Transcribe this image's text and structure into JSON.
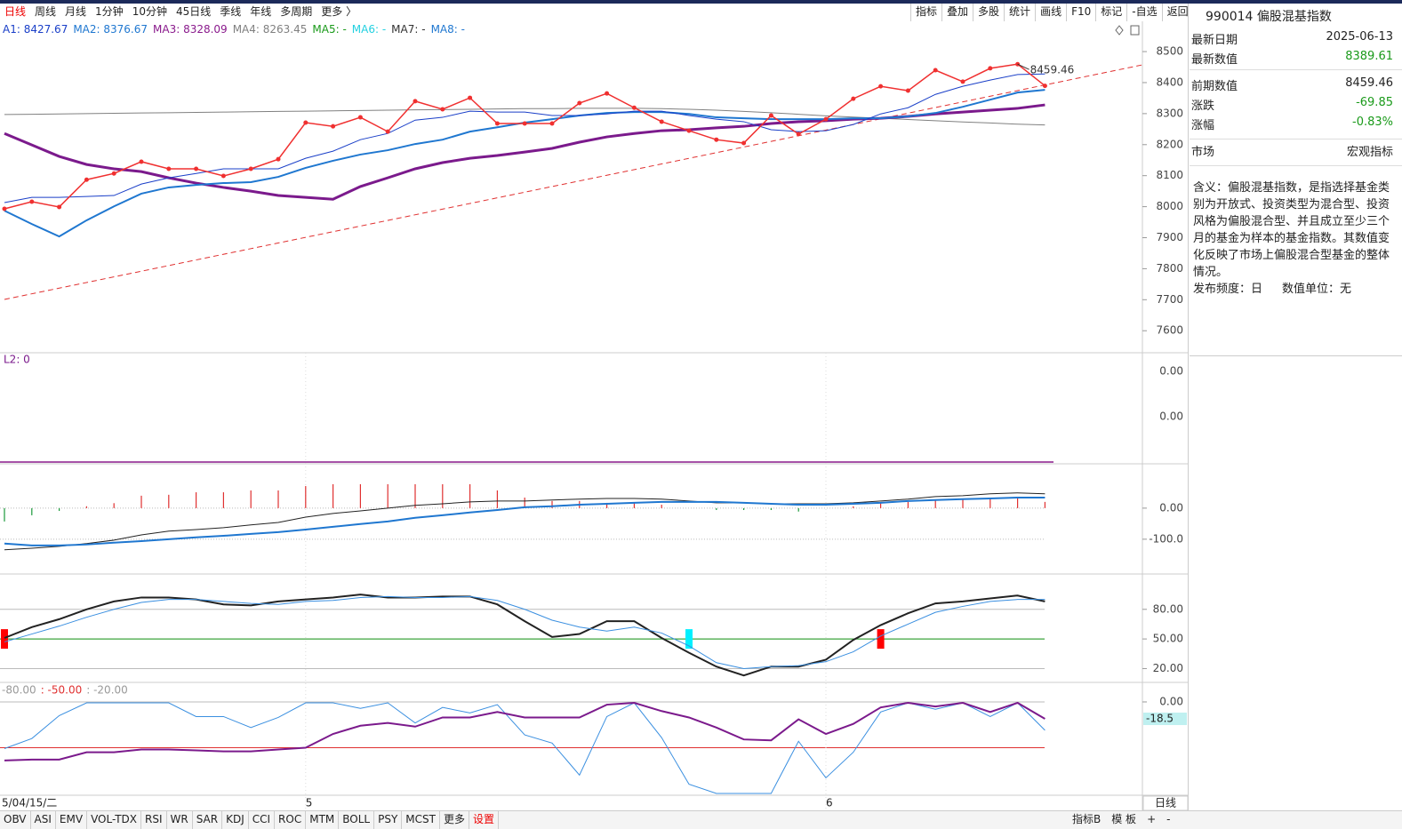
{
  "period_tabs": [
    "日线",
    "周线",
    "月线",
    "1分钟",
    "10分钟",
    "45日线",
    "季线",
    "年线",
    "多周期",
    "更多 〉"
  ],
  "period_active": 0,
  "tools": [
    "指标",
    "叠加",
    "多股",
    "统计",
    "画线",
    "F10",
    "标记",
    "-自选",
    "返回"
  ],
  "legend": [
    {
      "label": "A1: 8427.67",
      "color": "#1a3fc8"
    },
    {
      "label": "MA2: 8376.67",
      "color": "#1f77d0"
    },
    {
      "label": "MA3: 8328.09",
      "color": "#8a1a8c"
    },
    {
      "label": "MA4: 8263.45",
      "color": "#808080"
    },
    {
      "label": "MA5: -",
      "color": "#1a9a1a"
    },
    {
      "label": "MA6: -",
      "color": "#22d0e0"
    },
    {
      "label": "MA7: -",
      "color": "#333333"
    },
    {
      "label": "MA8: -",
      "color": "#1f77d0"
    }
  ],
  "main": {
    "type": "line",
    "ylim": [
      7529,
      8546
    ],
    "yticks": [
      8500,
      8400,
      8300,
      8200,
      8100,
      8000,
      7900,
      7800,
      7700,
      7600
    ],
    "series": [
      {
        "name": "MA4",
        "color": "#808080",
        "width": 1,
        "values": [
          8297,
          8298,
          8299,
          8300,
          8301,
          8302,
          8303,
          8304,
          8305,
          8306,
          8307,
          8308,
          8309,
          8310,
          8311,
          8312,
          8313,
          8314,
          8315,
          8316,
          8316,
          8317,
          8317,
          8317,
          8316,
          8314,
          8311,
          8307,
          8303,
          8298,
          8293,
          8289,
          8285,
          8281,
          8277,
          8273,
          8270,
          8266,
          8263.45
        ]
      },
      {
        "name": "MA3",
        "color": "#7b1a8c",
        "width": 3,
        "values": [
          8236,
          8199,
          8162,
          8136,
          8122,
          8113,
          8093,
          8076,
          8062,
          8050,
          8036,
          8030,
          8024,
          8065,
          8093,
          8122,
          8142,
          8156,
          8165,
          8176,
          8188,
          8208,
          8225,
          8236,
          8245,
          8248,
          8254,
          8259,
          8268,
          8274,
          8277,
          8282,
          8285,
          8291,
          8299,
          8305,
          8311,
          8317,
          8328.09
        ]
      },
      {
        "name": "MA2",
        "color": "#1f77d0",
        "width": 2,
        "values": [
          7987,
          7944,
          7904,
          7956,
          8001,
          8042,
          8062,
          8070,
          8076,
          8079,
          8096,
          8125,
          8148,
          8168,
          8182,
          8202,
          8216,
          8242,
          8256,
          8271,
          8282,
          8294,
          8302,
          8305,
          8305,
          8299,
          8288,
          8285,
          8282,
          8282,
          8282,
          8285,
          8285,
          8291,
          8302,
          8322,
          8345,
          8368,
          8376.67
        ]
      },
      {
        "name": "MA1",
        "color": "#1a3fc8",
        "width": 1,
        "values": [
          8013,
          8030,
          8030,
          8033,
          8036,
          8073,
          8093,
          8107,
          8122,
          8122,
          8122,
          8156,
          8179,
          8216,
          8236,
          8279,
          8288,
          8308,
          8305,
          8305,
          8294,
          8294,
          8299,
          8308,
          8308,
          8294,
          8282,
          8274,
          8248,
          8242,
          8245,
          8265,
          8299,
          8319,
          8362,
          8388,
          8408,
          8426,
          8427.67
        ]
      },
      {
        "name": "close",
        "color": "#f03030",
        "width": 1.5,
        "markers": true,
        "values": [
          7993,
          8016,
          7999,
          8087,
          8107,
          8145,
          8122,
          8122,
          8099,
          8122,
          8153,
          8271,
          8259,
          8288,
          8242,
          8340,
          8314,
          8351,
          8268,
          8268,
          8268,
          8334,
          8365,
          8319,
          8274,
          8245,
          8216,
          8205,
          8294,
          8234,
          8282,
          8348,
          8388,
          8374,
          8440,
          8403,
          8446,
          8459.46,
          8389.61
        ]
      }
    ],
    "annotation": {
      "index": 37,
      "value": 8459.46
    }
  },
  "panel2": {
    "label": "L2: 0",
    "tick_labels": [
      "0.00",
      "0.00"
    ]
  },
  "macd": {
    "type": "bar+line",
    "ylim": [
      -209,
      134
    ],
    "yticks": [
      {
        "value": 0,
        "label": "0.00"
      },
      {
        "value": -100,
        "label": "-100.0"
      }
    ],
    "up_color": "#e03030",
    "down_color": "#1a9a3a",
    "bars": [
      -43,
      -23,
      -9,
      6,
      16,
      40,
      43,
      51,
      51,
      57,
      57,
      71,
      77,
      77,
      77,
      77,
      77,
      77,
      57,
      34,
      23,
      23,
      17,
      17,
      11,
      0,
      -6,
      -6,
      -6,
      -11,
      0,
      6,
      17,
      20,
      26,
      31,
      31,
      34,
      20
    ],
    "series": [
      {
        "name": "DIF",
        "color": "#222222",
        "width": 1,
        "values": [
          -134,
          -129,
          -123,
          -114,
          -103,
          -86,
          -74,
          -69,
          -63,
          -54,
          -46,
          -29,
          -17,
          -9,
          0,
          9,
          14,
          20,
          23,
          23,
          26,
          29,
          31,
          31,
          29,
          23,
          17,
          17,
          14,
          14,
          14,
          17,
          23,
          29,
          37,
          40,
          46,
          49,
          46
        ]
      },
      {
        "name": "DEA",
        "color": "#1f77d0",
        "width": 2,
        "values": [
          -114,
          -120,
          -120,
          -117,
          -111,
          -106,
          -100,
          -94,
          -89,
          -83,
          -77,
          -69,
          -60,
          -51,
          -43,
          -31,
          -23,
          -14,
          -6,
          3,
          6,
          11,
          14,
          17,
          20,
          20,
          20,
          17,
          14,
          11,
          11,
          14,
          17,
          23,
          26,
          29,
          31,
          34,
          34
        ]
      }
    ]
  },
  "kdj": {
    "type": "line",
    "ylim": [
      6,
      114
    ],
    "yticks": [
      {
        "value": 80,
        "label": "80.00"
      },
      {
        "value": 50,
        "label": "50.00"
      },
      {
        "value": 20,
        "label": "20.00"
      }
    ],
    "refline": {
      "value": 50,
      "color": "#1a9a1a"
    },
    "series": [
      {
        "name": "K",
        "color": "#222222",
        "width": 2,
        "values": [
          51,
          62,
          70,
          80,
          88,
          92,
          92,
          90,
          85,
          84,
          88,
          90,
          92,
          95,
          92,
          92,
          93,
          93,
          85,
          68,
          52,
          55,
          68,
          68,
          51,
          36,
          22,
          13,
          22,
          22,
          29,
          49,
          64,
          76,
          86,
          88,
          91,
          94,
          88
        ]
      },
      {
        "name": "D",
        "color": "#3a8fe0",
        "width": 1,
        "values": [
          47,
          55,
          63,
          72,
          80,
          87,
          90,
          90,
          88,
          86,
          85,
          88,
          89,
          92,
          93,
          92,
          92,
          93,
          89,
          80,
          69,
          62,
          58,
          62,
          56,
          43,
          26,
          20,
          22,
          23,
          27,
          37,
          53,
          65,
          77,
          83,
          88,
          90,
          90
        ]
      }
    ],
    "signals": [
      {
        "index": 0,
        "color": "#ff0000"
      },
      {
        "index": 25,
        "color": "#00f0ff"
      },
      {
        "index": 32,
        "color": "#ff0000"
      }
    ]
  },
  "wr": {
    "type": "line",
    "header": [
      {
        "text": "-80.00",
        "color": "#999999"
      },
      {
        "text": ": -50.00",
        "color": "#e03030"
      },
      {
        "text": ": -20.00",
        "color": "#999999"
      }
    ],
    "ylim": [
      -102,
      19.4
    ],
    "yticks": [
      {
        "value": 0,
        "label": "0.00"
      }
    ],
    "refline": {
      "value": -50,
      "color": "#e03030"
    },
    "badge": -18.5,
    "series": [
      {
        "name": "WR1",
        "color": "#3a8fe0",
        "width": 1,
        "values": [
          -51,
          -40,
          -15,
          -1,
          -1,
          -1,
          -1,
          -16,
          -16,
          -28,
          -17,
          -1,
          -1,
          -7,
          -1,
          -23,
          -6,
          -12,
          -3,
          -36,
          -45,
          -80,
          -16,
          -1,
          -39,
          -90,
          -100,
          -100,
          -100,
          -43,
          -83,
          -55,
          -11,
          -1,
          -8,
          -1,
          -16,
          -1,
          -31
        ]
      },
      {
        "name": "WR2",
        "color": "#7b1a8c",
        "width": 2,
        "values": [
          -64,
          -63,
          -63,
          -55,
          -55,
          -52,
          -52,
          -53,
          -54,
          -54,
          -52,
          -50,
          -35,
          -26,
          -23,
          -27,
          -17,
          -17,
          -11,
          -17,
          -17,
          -17,
          -3,
          -1,
          -10,
          -17,
          -28,
          -41,
          -42,
          -19,
          -35,
          -24,
          -6,
          -1,
          -5,
          -1,
          -11,
          -1,
          -18.5
        ]
      }
    ]
  },
  "xaxis": {
    "labels": [
      {
        "label": "5/04/15/二",
        "index": 0
      },
      {
        "label": "5",
        "index": 11
      },
      {
        "label": "6",
        "index": 30
      }
    ],
    "period": "日线"
  },
  "info": {
    "title": "990014 偏股混基指数",
    "rows": [
      {
        "label": "最新日期",
        "value": "2025-06-13",
        "color": "#222222"
      },
      {
        "label": "最新数值",
        "value": "8389.61",
        "color": "#1a9a1a"
      },
      {
        "label": "前期数值",
        "value": "8459.46",
        "color": "#222222"
      },
      {
        "label": "涨跌",
        "value": "-69.85",
        "color": "#1a9a1a"
      },
      {
        "label": "涨幅",
        "value": "-0.83%",
        "color": "#1a9a1a"
      },
      {
        "label": "市场",
        "value": "宏观指标",
        "color": "#222222"
      }
    ],
    "description": "含义：偏股混基指数，是指选择基金类别为开放式、投资类型为混合型、投资风格为偏股混合型、并且成立至少三个月的基金为样本的基金指数。其数值变化反映了市场上偏股混合型基金的整体情况。",
    "frequency": "发布频度：日",
    "unit": "数值单位：无"
  },
  "bottom_tabs": [
    "OBV",
    "ASI",
    "EMV",
    "VOL-TDX",
    "RSI",
    "WR",
    "SAR",
    "KDJ",
    "CCI",
    "ROC",
    "MTM",
    "BOLL",
    "PSY",
    "MCST",
    "更多",
    "设置"
  ],
  "bottom_highlight": 15,
  "bottom_right": [
    "指标B",
    "模 板",
    "+",
    "-"
  ]
}
